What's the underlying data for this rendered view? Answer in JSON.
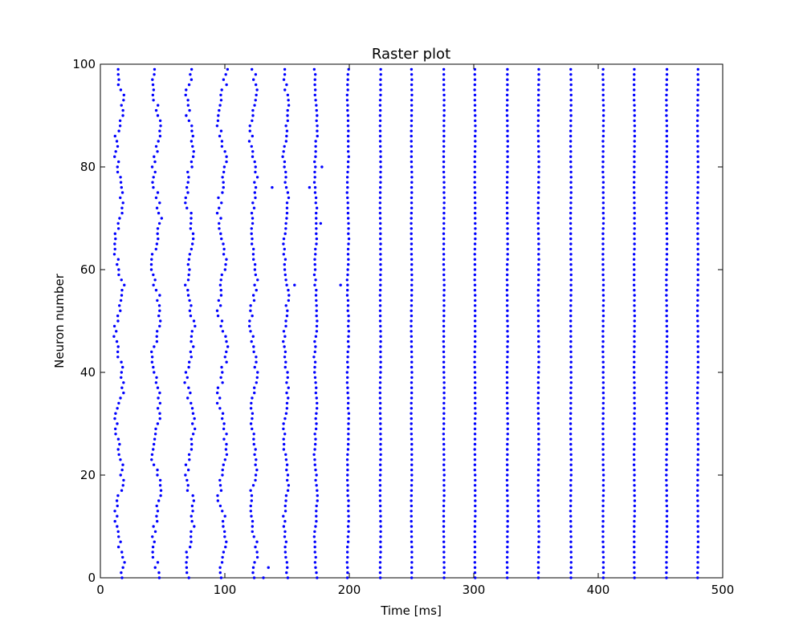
{
  "chart_data": {
    "type": "scatter",
    "title": "Raster plot",
    "xlabel": "Time [ms]",
    "ylabel": "Neuron number",
    "xlim": [
      0,
      500
    ],
    "ylim": [
      0,
      100
    ],
    "xticks": [
      0,
      100,
      200,
      300,
      400,
      500
    ],
    "yticks": [
      0,
      20,
      40,
      60,
      80,
      100
    ],
    "grid": false,
    "marker_color": "#0000ff",
    "neurons": 100,
    "spike_columns": [
      {
        "center_ms": 15,
        "jitter_ms": 4.5
      },
      {
        "center_ms": 45,
        "jitter_ms": 4.5
      },
      {
        "center_ms": 72,
        "jitter_ms": 4.5
      },
      {
        "center_ms": 98,
        "jitter_ms": 4.5
      },
      {
        "center_ms": 123,
        "jitter_ms": 3.5
      },
      {
        "center_ms": 149,
        "jitter_ms": 2.5
      },
      {
        "center_ms": 173,
        "jitter_ms": 1.5
      },
      {
        "center_ms": 199,
        "jitter_ms": 0.8
      },
      {
        "center_ms": 225,
        "jitter_ms": 0.3
      },
      {
        "center_ms": 250,
        "jitter_ms": 0.3
      },
      {
        "center_ms": 276,
        "jitter_ms": 0.3
      },
      {
        "center_ms": 301,
        "jitter_ms": 0.3
      },
      {
        "center_ms": 327,
        "jitter_ms": 0.3
      },
      {
        "center_ms": 352,
        "jitter_ms": 0.3
      },
      {
        "center_ms": 378,
        "jitter_ms": 0.3
      },
      {
        "center_ms": 404,
        "jitter_ms": 0.3
      },
      {
        "center_ms": 429,
        "jitter_ms": 0.3
      },
      {
        "center_ms": 455,
        "jitter_ms": 0.3
      },
      {
        "center_ms": 480,
        "jitter_ms": 0.3
      }
    ],
    "outlier_spikes": [
      {
        "x": 156,
        "y": 57
      },
      {
        "x": 193,
        "y": 57
      },
      {
        "x": 138,
        "y": 76
      },
      {
        "x": 177,
        "y": 69
      },
      {
        "x": 178,
        "y": 80
      },
      {
        "x": 135,
        "y": 2
      },
      {
        "x": 131,
        "y": 0
      },
      {
        "x": 168,
        "y": 76
      }
    ]
  }
}
